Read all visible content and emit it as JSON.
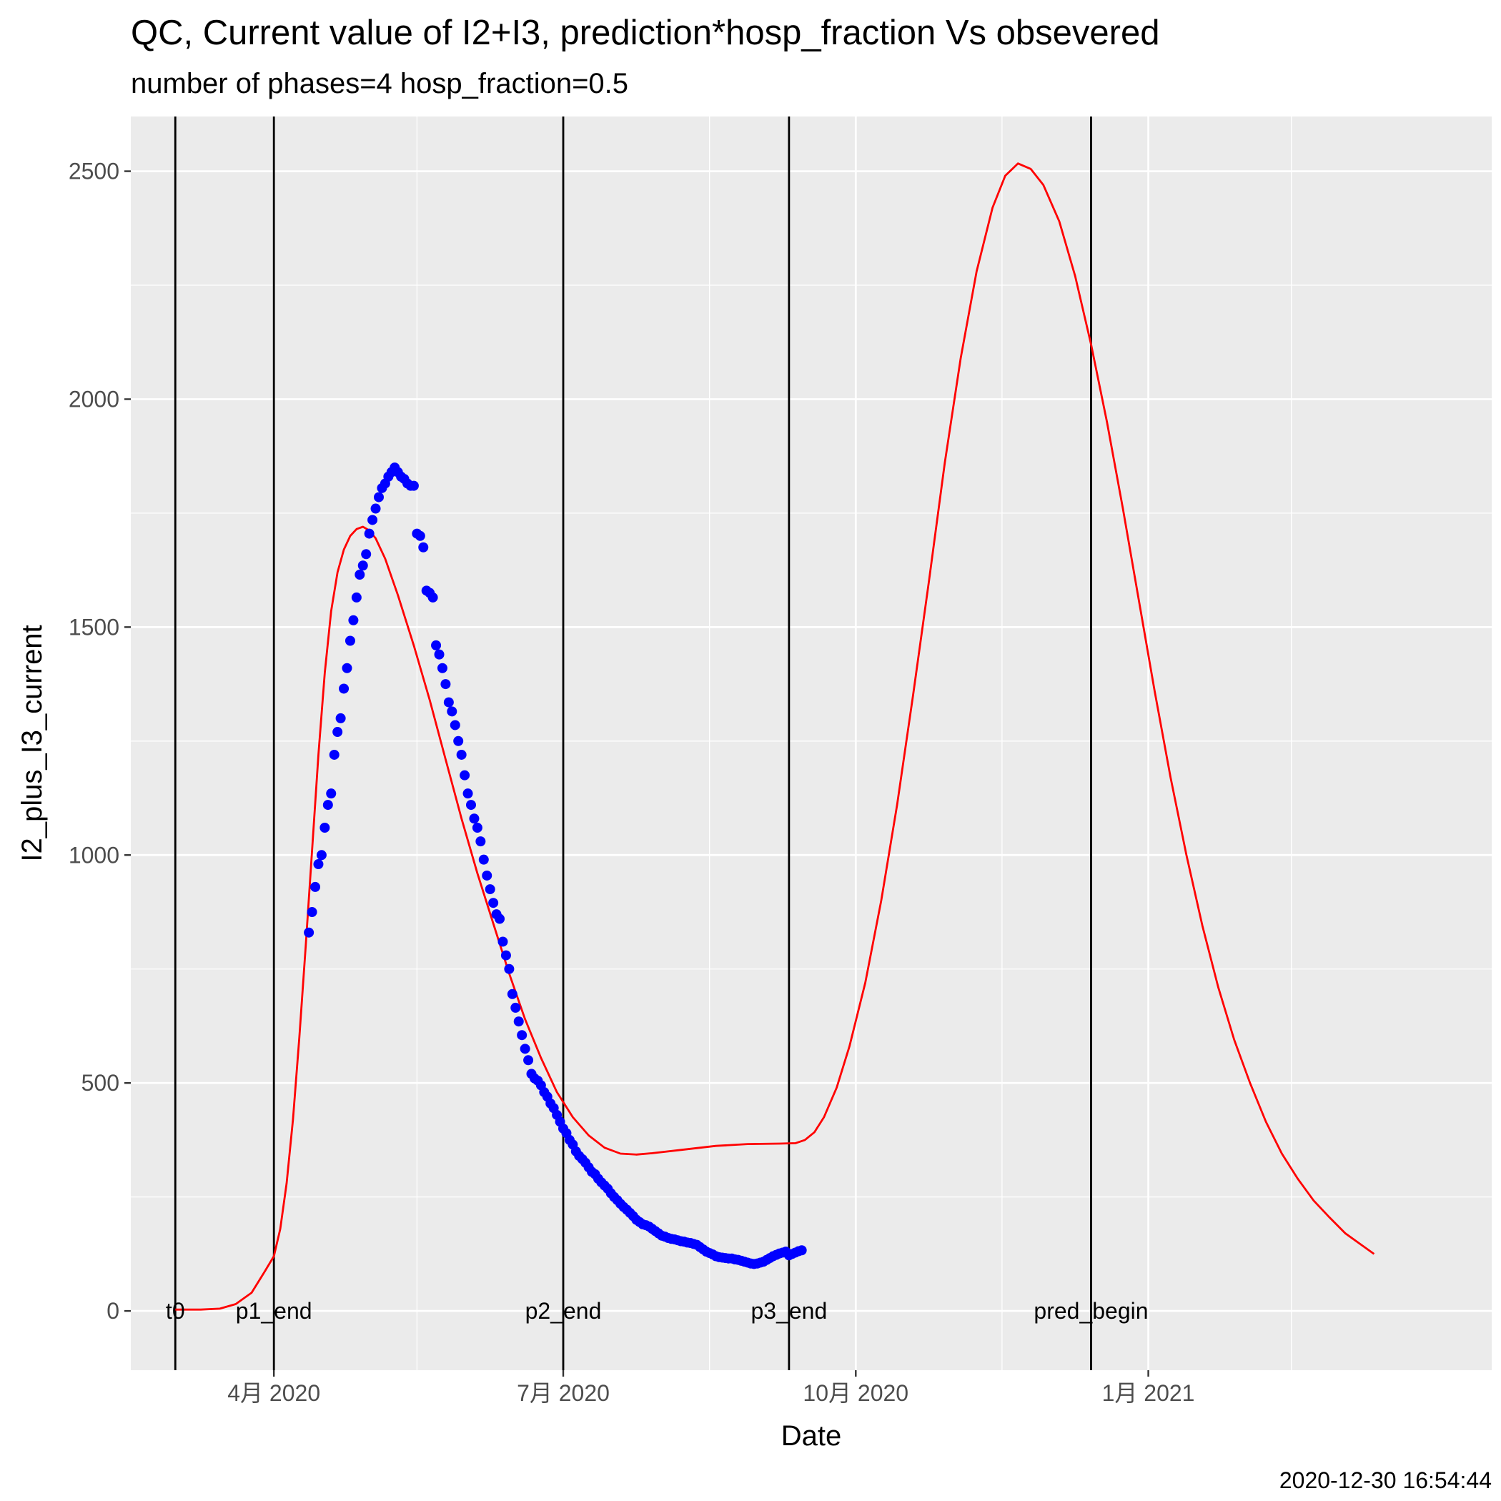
{
  "chart_data": {
    "type": "line",
    "title": "QC, Current value of I2+I3, prediction*hosp_fraction Vs obsevered",
    "subtitle": "number of phases=4   hosp_fraction=0.5",
    "xlabel": "Date",
    "ylabel": "I2_plus_I3_current",
    "caption": "2020-12-30 16:54:44",
    "xlim": [
      "2020-02-16",
      "2021-04-19"
    ],
    "ylim": [
      -130,
      2620
    ],
    "x_ticks": [
      {
        "date": "2020-04-01",
        "label": "4月 2020"
      },
      {
        "date": "2020-07-01",
        "label": "7月 2020"
      },
      {
        "date": "2020-10-01",
        "label": "10月 2020"
      },
      {
        "date": "2021-01-01",
        "label": "1月 2021"
      }
    ],
    "x_minor_ticks": [
      "2020-02-15",
      "2020-05-16",
      "2020-08-16",
      "2020-11-16",
      "2021-02-15"
    ],
    "y_ticks": [
      0,
      500,
      1000,
      1500,
      2000,
      2500
    ],
    "y_minor_ticks": [
      250,
      750,
      1250,
      1750,
      2250
    ],
    "grid": true,
    "background": "#ebebeb",
    "vlines": [
      {
        "date": "2020-03-01",
        "label": "t0"
      },
      {
        "date": "2020-04-01",
        "label": "p1_end"
      },
      {
        "date": "2020-07-01",
        "label": "p2_end"
      },
      {
        "date": "2020-09-10",
        "label": "p3_end"
      },
      {
        "date": "2020-12-14",
        "label": "pred_begin"
      }
    ],
    "series": [
      {
        "kind": "line",
        "color": "#ff0000",
        "points": [
          [
            "2020-03-01",
            3
          ],
          [
            "2020-03-09",
            3
          ],
          [
            "2020-03-15",
            5
          ],
          [
            "2020-03-20",
            15
          ],
          [
            "2020-03-25",
            40
          ],
          [
            "2020-03-29",
            85
          ],
          [
            "2020-04-01",
            120
          ],
          [
            "2020-04-03",
            180
          ],
          [
            "2020-04-05",
            280
          ],
          [
            "2020-04-07",
            420
          ],
          [
            "2020-04-09",
            600
          ],
          [
            "2020-04-11",
            800
          ],
          [
            "2020-04-13",
            1010
          ],
          [
            "2020-04-15",
            1220
          ],
          [
            "2020-04-17",
            1400
          ],
          [
            "2020-04-19",
            1535
          ],
          [
            "2020-04-21",
            1620
          ],
          [
            "2020-04-23",
            1670
          ],
          [
            "2020-04-25",
            1700
          ],
          [
            "2020-04-27",
            1715
          ],
          [
            "2020-04-29",
            1720
          ],
          [
            "2020-05-01",
            1712
          ],
          [
            "2020-05-03",
            1695
          ],
          [
            "2020-05-06",
            1650
          ],
          [
            "2020-05-10",
            1570
          ],
          [
            "2020-05-15",
            1460
          ],
          [
            "2020-05-20",
            1340
          ],
          [
            "2020-05-25",
            1210
          ],
          [
            "2020-05-30",
            1080
          ],
          [
            "2020-06-04",
            960
          ],
          [
            "2020-06-09",
            850
          ],
          [
            "2020-06-14",
            740
          ],
          [
            "2020-06-19",
            640
          ],
          [
            "2020-06-24",
            555
          ],
          [
            "2020-06-29",
            480
          ],
          [
            "2020-07-04",
            425
          ],
          [
            "2020-07-09",
            385
          ],
          [
            "2020-07-14",
            358
          ],
          [
            "2020-07-19",
            345
          ],
          [
            "2020-07-24",
            343
          ],
          [
            "2020-07-29",
            346
          ],
          [
            "2020-08-08",
            354
          ],
          [
            "2020-08-18",
            362
          ],
          [
            "2020-08-28",
            366
          ],
          [
            "2020-09-07",
            367
          ],
          [
            "2020-09-12",
            368
          ],
          [
            "2020-09-15",
            375
          ],
          [
            "2020-09-18",
            392
          ],
          [
            "2020-09-21",
            425
          ],
          [
            "2020-09-25",
            490
          ],
          [
            "2020-09-29",
            580
          ],
          [
            "2020-10-04",
            720
          ],
          [
            "2020-10-09",
            900
          ],
          [
            "2020-10-14",
            1110
          ],
          [
            "2020-10-19",
            1350
          ],
          [
            "2020-10-24",
            1600
          ],
          [
            "2020-10-29",
            1860
          ],
          [
            "2020-11-03",
            2090
          ],
          [
            "2020-11-08",
            2280
          ],
          [
            "2020-11-13",
            2420
          ],
          [
            "2020-11-17",
            2490
          ],
          [
            "2020-11-21",
            2517
          ],
          [
            "2020-11-25",
            2505
          ],
          [
            "2020-11-29",
            2470
          ],
          [
            "2020-12-04",
            2390
          ],
          [
            "2020-12-09",
            2270
          ],
          [
            "2020-12-14",
            2120
          ],
          [
            "2020-12-19",
            1950
          ],
          [
            "2020-12-24",
            1760
          ],
          [
            "2020-12-29",
            1560
          ],
          [
            "2021-01-03",
            1360
          ],
          [
            "2021-01-08",
            1170
          ],
          [
            "2021-01-13",
            1000
          ],
          [
            "2021-01-18",
            845
          ],
          [
            "2021-01-23",
            710
          ],
          [
            "2021-01-28",
            595
          ],
          [
            "2021-02-02",
            500
          ],
          [
            "2021-02-07",
            415
          ],
          [
            "2021-02-12",
            345
          ],
          [
            "2021-02-17",
            290
          ],
          [
            "2021-02-22",
            242
          ],
          [
            "2021-02-27",
            205
          ],
          [
            "2021-03-04",
            170
          ],
          [
            "2021-03-09",
            145
          ],
          [
            "2021-03-13",
            125
          ]
        ]
      },
      {
        "kind": "scatter",
        "color": "#0000ff",
        "points": [
          [
            "2020-04-12",
            830
          ],
          [
            "2020-04-13",
            875
          ],
          [
            "2020-04-14",
            930
          ],
          [
            "2020-04-15",
            980
          ],
          [
            "2020-04-16",
            1000
          ],
          [
            "2020-04-17",
            1060
          ],
          [
            "2020-04-18",
            1110
          ],
          [
            "2020-04-19",
            1135
          ],
          [
            "2020-04-20",
            1220
          ],
          [
            "2020-04-21",
            1270
          ],
          [
            "2020-04-22",
            1300
          ],
          [
            "2020-04-23",
            1365
          ],
          [
            "2020-04-24",
            1410
          ],
          [
            "2020-04-25",
            1470
          ],
          [
            "2020-04-26",
            1515
          ],
          [
            "2020-04-27",
            1565
          ],
          [
            "2020-04-28",
            1615
          ],
          [
            "2020-04-29",
            1635
          ],
          [
            "2020-04-30",
            1660
          ],
          [
            "2020-05-01",
            1705
          ],
          [
            "2020-05-02",
            1735
          ],
          [
            "2020-05-03",
            1760
          ],
          [
            "2020-05-04",
            1785
          ],
          [
            "2020-05-05",
            1805
          ],
          [
            "2020-05-06",
            1815
          ],
          [
            "2020-05-07",
            1830
          ],
          [
            "2020-05-08",
            1840
          ],
          [
            "2020-05-09",
            1850
          ],
          [
            "2020-05-10",
            1840
          ],
          [
            "2020-05-11",
            1830
          ],
          [
            "2020-05-12",
            1825
          ],
          [
            "2020-05-13",
            1815
          ],
          [
            "2020-05-14",
            1810
          ],
          [
            "2020-05-15",
            1810
          ],
          [
            "2020-05-16",
            1705
          ],
          [
            "2020-05-17",
            1700
          ],
          [
            "2020-05-18",
            1675
          ],
          [
            "2020-05-19",
            1580
          ],
          [
            "2020-05-20",
            1575
          ],
          [
            "2020-05-21",
            1565
          ],
          [
            "2020-05-22",
            1460
          ],
          [
            "2020-05-23",
            1440
          ],
          [
            "2020-05-24",
            1410
          ],
          [
            "2020-05-25",
            1375
          ],
          [
            "2020-05-26",
            1335
          ],
          [
            "2020-05-27",
            1315
          ],
          [
            "2020-05-28",
            1285
          ],
          [
            "2020-05-29",
            1250
          ],
          [
            "2020-05-30",
            1220
          ],
          [
            "2020-05-31",
            1175
          ],
          [
            "2020-06-01",
            1135
          ],
          [
            "2020-06-02",
            1110
          ],
          [
            "2020-06-03",
            1080
          ],
          [
            "2020-06-04",
            1060
          ],
          [
            "2020-06-05",
            1030
          ],
          [
            "2020-06-06",
            990
          ],
          [
            "2020-06-07",
            955
          ],
          [
            "2020-06-08",
            925
          ],
          [
            "2020-06-09",
            895
          ],
          [
            "2020-06-10",
            870
          ],
          [
            "2020-06-11",
            860
          ],
          [
            "2020-06-12",
            810
          ],
          [
            "2020-06-13",
            780
          ],
          [
            "2020-06-14",
            750
          ],
          [
            "2020-06-15",
            695
          ],
          [
            "2020-06-16",
            665
          ],
          [
            "2020-06-17",
            635
          ],
          [
            "2020-06-18",
            605
          ],
          [
            "2020-06-19",
            575
          ],
          [
            "2020-06-20",
            550
          ],
          [
            "2020-06-21",
            520
          ],
          [
            "2020-06-22",
            510
          ],
          [
            "2020-06-23",
            505
          ],
          [
            "2020-06-24",
            495
          ],
          [
            "2020-06-25",
            480
          ],
          [
            "2020-06-26",
            470
          ],
          [
            "2020-06-27",
            455
          ],
          [
            "2020-06-28",
            445
          ],
          [
            "2020-06-29",
            430
          ],
          [
            "2020-06-30",
            415
          ],
          [
            "2020-07-01",
            400
          ],
          [
            "2020-07-02",
            390
          ],
          [
            "2020-07-03",
            375
          ],
          [
            "2020-07-04",
            365
          ],
          [
            "2020-07-05",
            350
          ],
          [
            "2020-07-06",
            340
          ],
          [
            "2020-07-07",
            333
          ],
          [
            "2020-07-08",
            325
          ],
          [
            "2020-07-09",
            315
          ],
          [
            "2020-07-10",
            305
          ],
          [
            "2020-07-11",
            300
          ],
          [
            "2020-07-12",
            290
          ],
          [
            "2020-07-13",
            282
          ],
          [
            "2020-07-14",
            275
          ],
          [
            "2020-07-15",
            268
          ],
          [
            "2020-07-16",
            258
          ],
          [
            "2020-07-17",
            250
          ],
          [
            "2020-07-18",
            243
          ],
          [
            "2020-07-19",
            235
          ],
          [
            "2020-07-20",
            228
          ],
          [
            "2020-07-21",
            222
          ],
          [
            "2020-07-22",
            215
          ],
          [
            "2020-07-23",
            208
          ],
          [
            "2020-07-24",
            200
          ],
          [
            "2020-07-25",
            195
          ],
          [
            "2020-07-26",
            190
          ],
          [
            "2020-07-27",
            188
          ],
          [
            "2020-07-28",
            185
          ],
          [
            "2020-07-29",
            180
          ],
          [
            "2020-07-30",
            175
          ],
          [
            "2020-07-31",
            170
          ],
          [
            "2020-08-01",
            165
          ],
          [
            "2020-08-02",
            163
          ],
          [
            "2020-08-03",
            160
          ],
          [
            "2020-08-04",
            158
          ],
          [
            "2020-08-05",
            157
          ],
          [
            "2020-08-06",
            155
          ],
          [
            "2020-08-07",
            153
          ],
          [
            "2020-08-08",
            152
          ],
          [
            "2020-08-09",
            150
          ],
          [
            "2020-08-10",
            149
          ],
          [
            "2020-08-11",
            147
          ],
          [
            "2020-08-12",
            145
          ],
          [
            "2020-08-13",
            140
          ],
          [
            "2020-08-14",
            135
          ],
          [
            "2020-08-15",
            130
          ],
          [
            "2020-08-16",
            127
          ],
          [
            "2020-08-17",
            124
          ],
          [
            "2020-08-18",
            120
          ],
          [
            "2020-08-19",
            118
          ],
          [
            "2020-08-20",
            117
          ],
          [
            "2020-08-21",
            116
          ],
          [
            "2020-08-22",
            115
          ],
          [
            "2020-08-23",
            115
          ],
          [
            "2020-08-24",
            113
          ],
          [
            "2020-08-25",
            112
          ],
          [
            "2020-08-26",
            110
          ],
          [
            "2020-08-27",
            108
          ],
          [
            "2020-08-28",
            106
          ],
          [
            "2020-08-29",
            104
          ],
          [
            "2020-08-30",
            103
          ],
          [
            "2020-08-31",
            104
          ],
          [
            "2020-09-01",
            106
          ],
          [
            "2020-09-02",
            108
          ],
          [
            "2020-09-03",
            112
          ],
          [
            "2020-09-04",
            116
          ],
          [
            "2020-09-05",
            120
          ],
          [
            "2020-09-06",
            123
          ],
          [
            "2020-09-07",
            126
          ],
          [
            "2020-09-08",
            128
          ],
          [
            "2020-09-09",
            130
          ],
          [
            "2020-09-10",
            122
          ],
          [
            "2020-09-11",
            125
          ],
          [
            "2020-09-12",
            128
          ],
          [
            "2020-09-13",
            131
          ],
          [
            "2020-09-14",
            133
          ]
        ]
      }
    ]
  }
}
